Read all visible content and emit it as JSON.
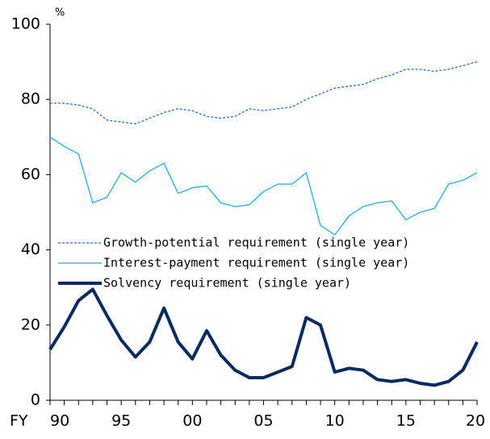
{
  "chart_data": {
    "type": "line",
    "x_label": "FY",
    "y_unit": "%",
    "categories": [
      "90",
      null,
      null,
      null,
      null,
      "95",
      null,
      null,
      null,
      null,
      "00",
      null,
      null,
      null,
      null,
      "05",
      null,
      null,
      null,
      null,
      "10",
      null,
      null,
      null,
      null,
      "15",
      null,
      null,
      null,
      null,
      "20"
    ],
    "series": [
      {
        "name": "Growth-potential requirement (single year)",
        "color": "#2e6fc0",
        "style": "dashed",
        "values": [
          79,
          79,
          78.5,
          77.5,
          74.5,
          74,
          73.5,
          75,
          76.5,
          77.5,
          77,
          75.5,
          75,
          75.5,
          77.5,
          77,
          77.5,
          78,
          80,
          81.5,
          83,
          83.5,
          84,
          85.5,
          86.5,
          88,
          88,
          87.5,
          88,
          89,
          90
        ]
      },
      {
        "name": "Interest-payment requirement (single year)",
        "color": "#29a9e1",
        "style": "solid",
        "values": [
          70,
          67.5,
          65.5,
          52.5,
          54,
          60.5,
          58,
          61,
          63,
          55,
          56.5,
          57,
          52.5,
          51.5,
          52,
          55.5,
          57.5,
          57.5,
          60.5,
          46.5,
          44,
          49,
          51.5,
          52.5,
          53,
          48,
          50,
          51,
          57.5,
          58.5,
          60.5
        ]
      },
      {
        "name": "Solvency requirement (single year)",
        "color": "#0b2a5f",
        "style": "thick",
        "values": [
          13.5,
          19.5,
          26.5,
          29.5,
          22.5,
          16,
          11.5,
          15.5,
          24.5,
          15.5,
          11,
          18.5,
          12,
          8,
          6,
          6,
          7.5,
          9,
          22,
          20,
          7.5,
          8.5,
          8,
          5.5,
          5,
          5.5,
          4.5,
          4,
          5,
          8,
          15.5
        ]
      }
    ],
    "ylim": [
      0,
      100
    ],
    "yticks": [
      0,
      20,
      40,
      60,
      80,
      100
    ],
    "grid": false,
    "legend": "center-left"
  }
}
